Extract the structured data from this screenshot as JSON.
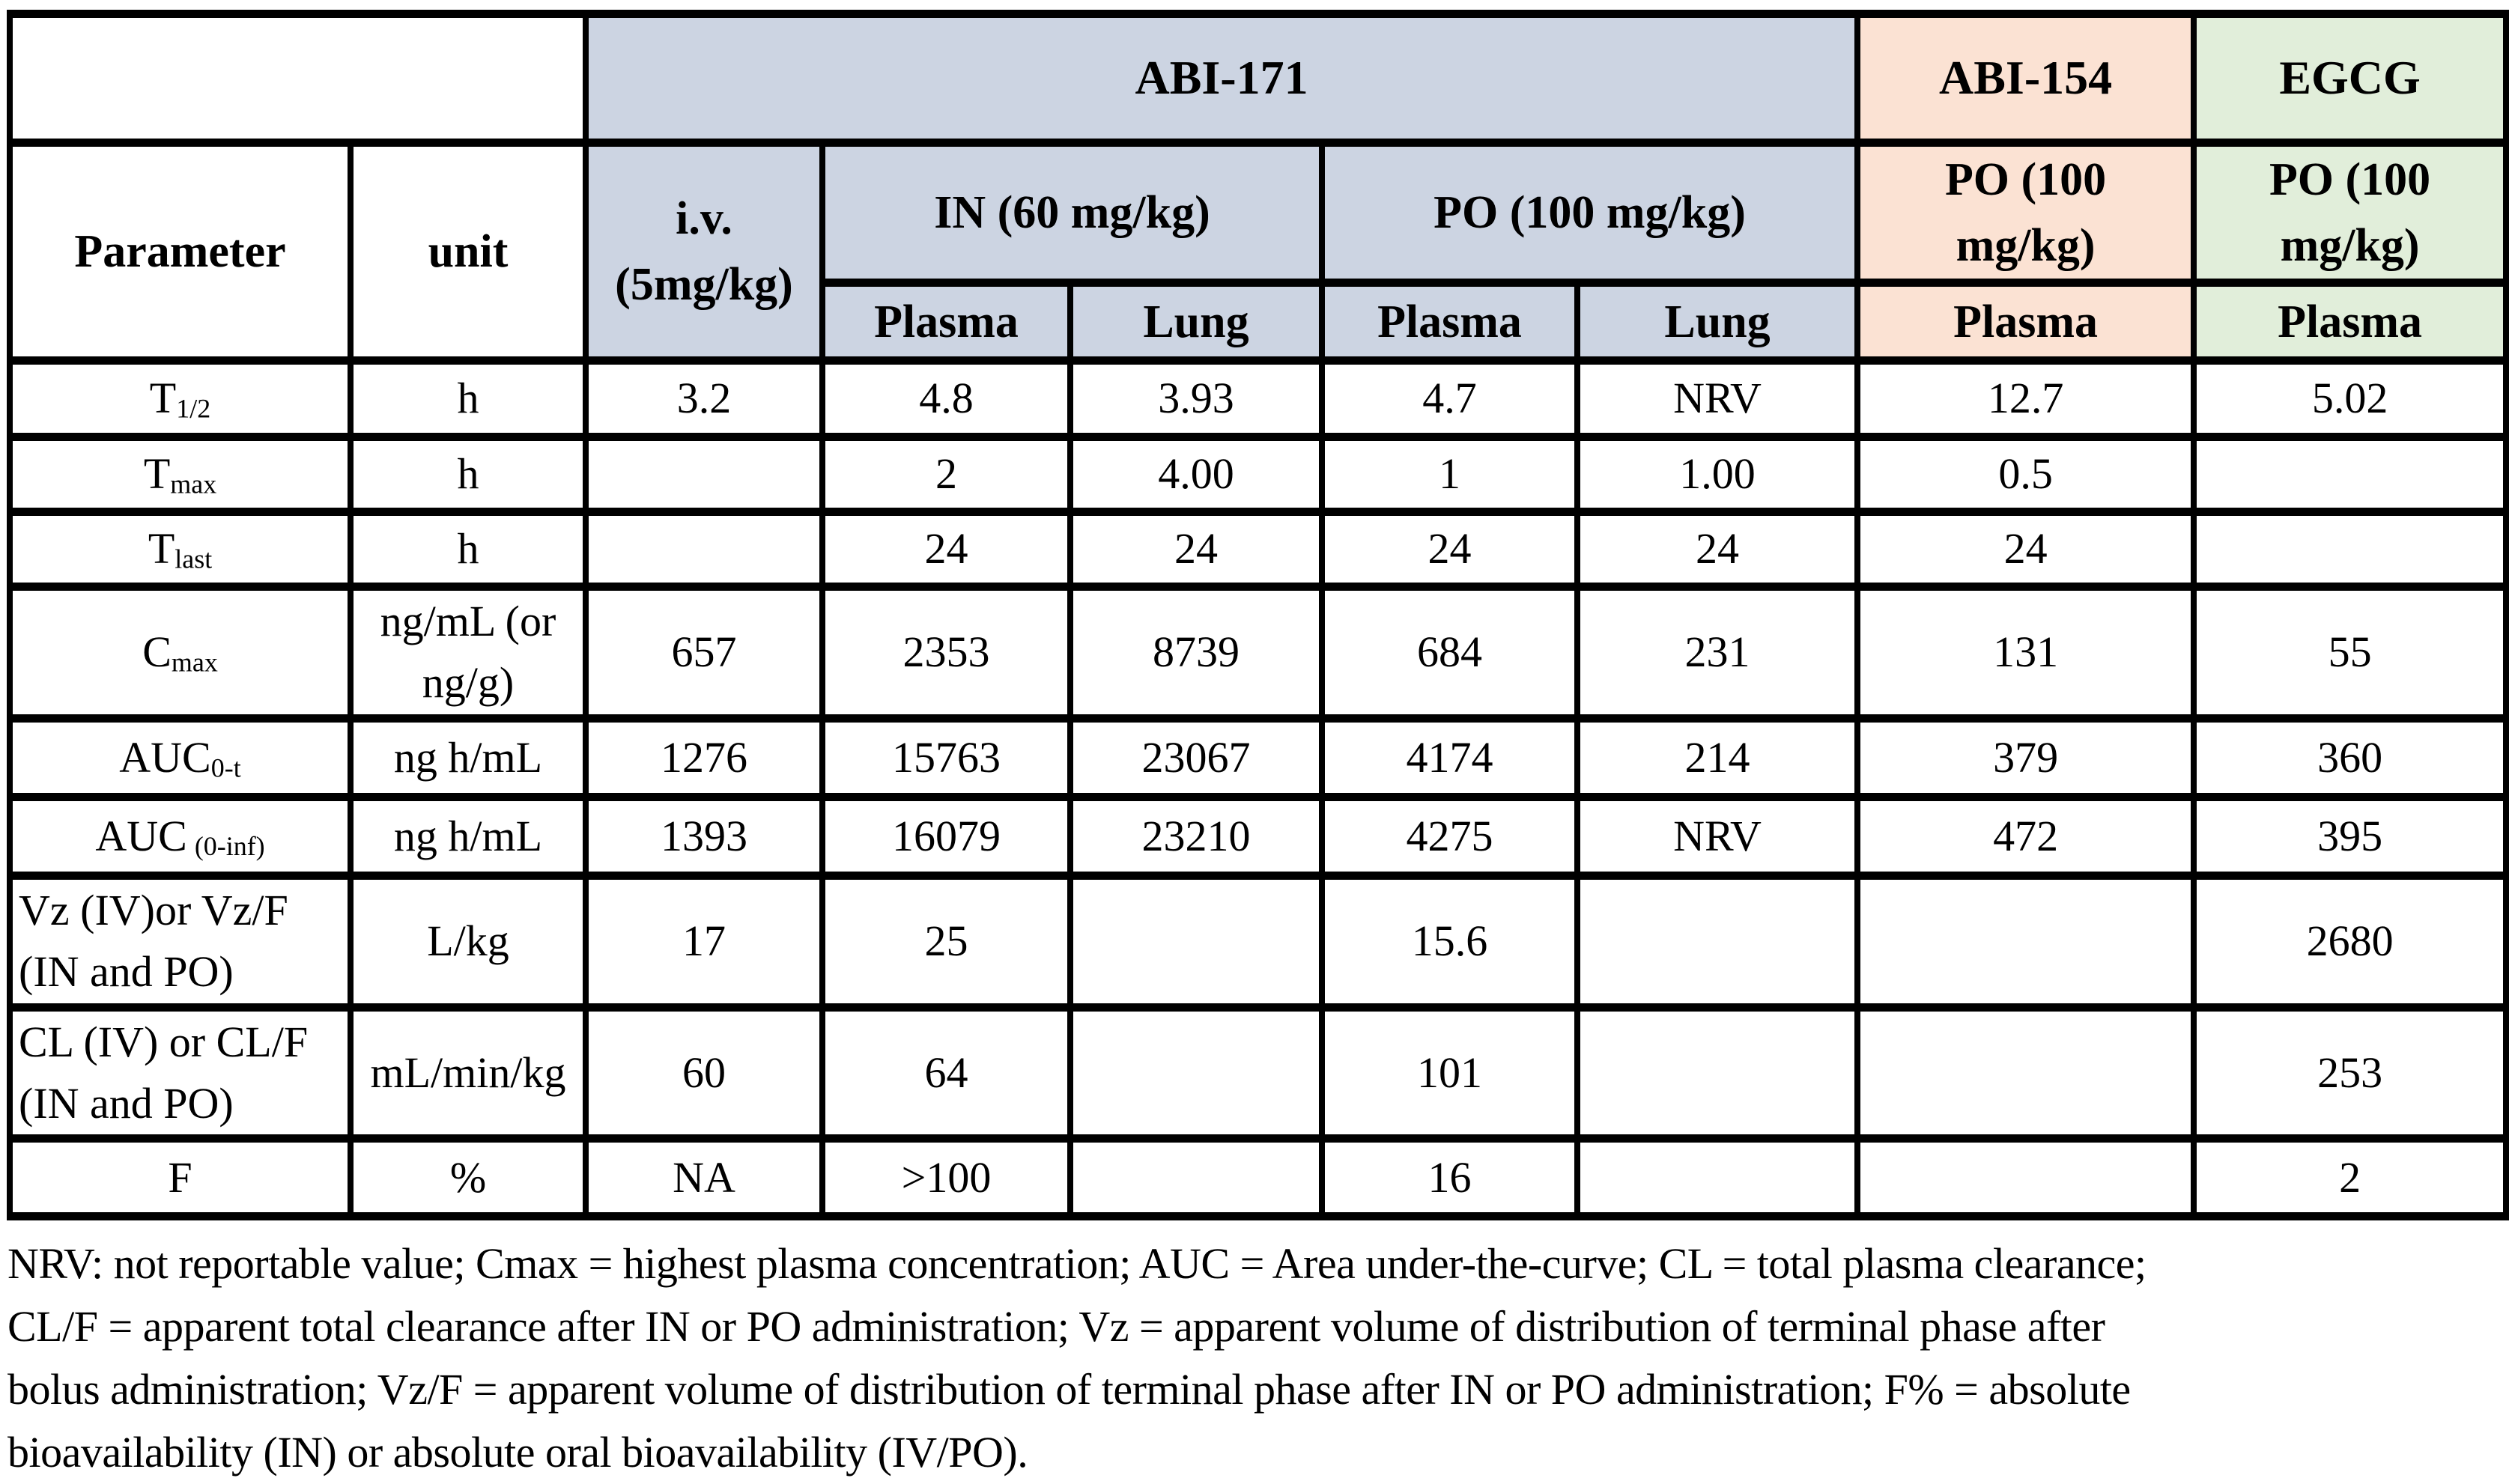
{
  "colors": {
    "abi171_fill": "#ccd4e2",
    "abi154_fill": "#fbe2d3",
    "egcg_fill": "#e1eeda",
    "border": "#000000",
    "text": "#000000"
  },
  "header": {
    "corner_label": "",
    "group_abi171": "ABI-171",
    "group_abi154": "ABI-154",
    "group_egcg": "EGCG",
    "parameter_label": "Parameter",
    "unit_label": "unit",
    "iv_line1": "i.v.",
    "iv_line2": "(5mg/kg)",
    "in_dose_label": "IN (60 mg/kg)",
    "po_dose_label": "PO (100 mg/kg)",
    "abi154_dose_line1": "PO (100",
    "abi154_dose_line2": "mg/kg)",
    "egcg_dose_line1": "PO (100",
    "egcg_dose_line2": "mg/kg)",
    "in_plasma_label": "Plasma",
    "in_lung_label": "Lung",
    "po_plasma_label": "Plasma",
    "po_lung_label": "Lung",
    "abi154_plasma_label": "Plasma",
    "egcg_plasma_label": "Plasma"
  },
  "rows": [
    {
      "param": {
        "base": "T",
        "sub": "1/2"
      },
      "unit_lines": [
        "h"
      ],
      "values": [
        "3.2",
        "4.8",
        "3.93",
        "4.7",
        "NRV",
        "12.7",
        "5.02"
      ]
    },
    {
      "param": {
        "base": "T",
        "sub": "max"
      },
      "unit_lines": [
        "h"
      ],
      "values": [
        "",
        "2",
        "4.00",
        "1",
        "1.00",
        "0.5",
        ""
      ]
    },
    {
      "param": {
        "base": "T",
        "sub": "last"
      },
      "unit_lines": [
        "h"
      ],
      "values": [
        "",
        "24",
        "24",
        "24",
        "24",
        "24",
        ""
      ]
    },
    {
      "param": {
        "base": "C",
        "sub": "max"
      },
      "unit_lines": [
        "ng/mL (or",
        "ng/g)"
      ],
      "values": [
        "657",
        "2353",
        "8739",
        "684",
        "231",
        "131",
        "55"
      ]
    },
    {
      "param": {
        "base": "AUC",
        "sub": "0-t"
      },
      "unit_lines": [
        "ng h/mL"
      ],
      "values": [
        "1276",
        "15763",
        "23067",
        "4174",
        "214",
        "379",
        "360"
      ]
    },
    {
      "param": {
        "base": "AUC",
        "sub": "(0-inf)",
        "sub_gap": true
      },
      "unit_lines": [
        "ng h/mL"
      ],
      "values": [
        "1393",
        "16079",
        "23210",
        "4275",
        "NRV",
        "472",
        "395"
      ]
    },
    {
      "param": {
        "lines": [
          "Vz (IV)or Vz/F",
          "(IN and PO)"
        ]
      },
      "unit_lines": [
        "L/kg"
      ],
      "values": [
        "17",
        "25",
        "",
        "15.6",
        "",
        "",
        "2680"
      ]
    },
    {
      "param": {
        "lines": [
          "CL (IV) or CL/F",
          "(IN and PO)"
        ]
      },
      "unit_lines": [
        "mL/min/kg"
      ],
      "values": [
        "60",
        "64",
        "",
        "101",
        "",
        "",
        "253"
      ]
    },
    {
      "param": {
        "base": "F",
        "sub": ""
      },
      "unit_lines": [
        "%"
      ],
      "values": [
        "NA",
        ">100",
        "",
        "16",
        "",
        "",
        "2"
      ]
    }
  ],
  "footnote": {
    "lines": [
      "NRV: not reportable value; Cmax = highest plasma concentration; AUC = Area under-the-curve; CL = total plasma clearance;",
      "CL/F = apparent total clearance after IN or PO administration; Vz = apparent volume of distribution of terminal phase after",
      "bolus administration; Vz/F = apparent volume of distribution of terminal phase after IN or PO administration; F% = absolute",
      "bioavailability (IN) or absolute oral bioavailability (IV/PO)."
    ]
  }
}
